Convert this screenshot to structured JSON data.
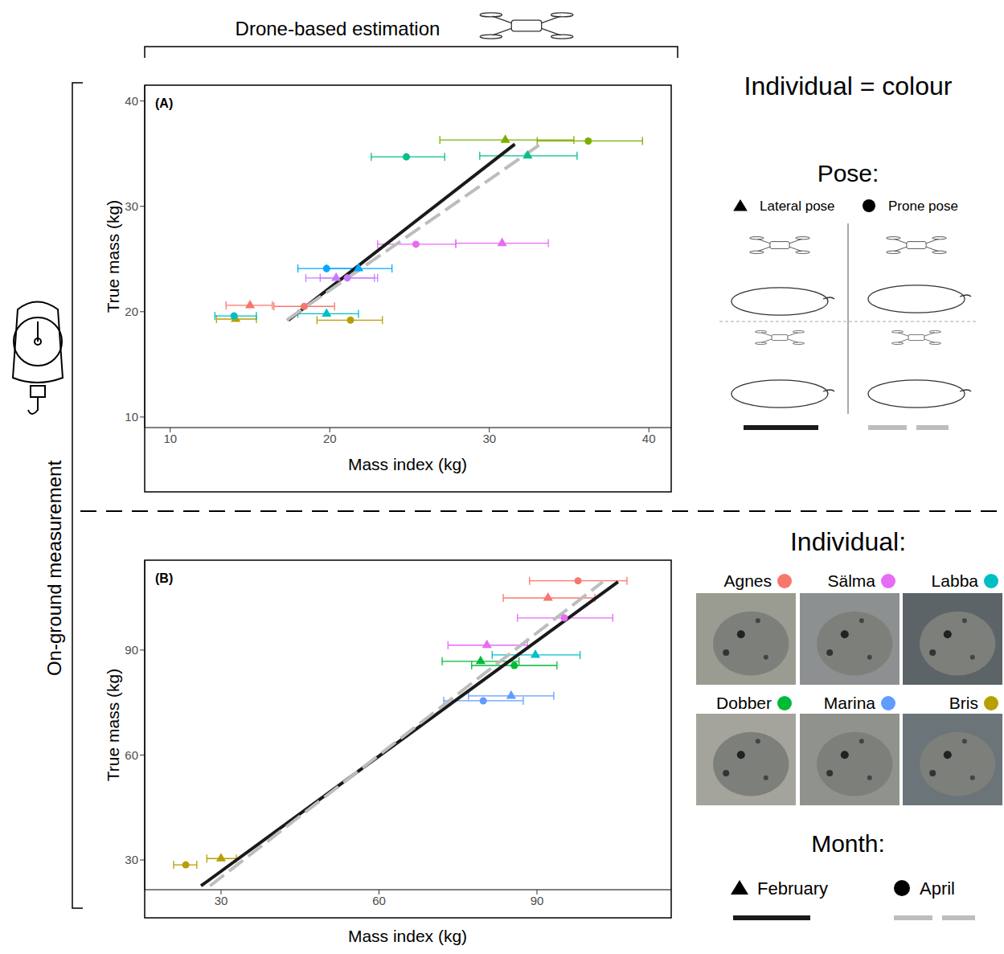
{
  "figure": {
    "top_label": "Drone-based estimation",
    "left_label": "On-ground measurement",
    "colour_note": "Individual = colour",
    "pose_title": "Pose:",
    "individual_title": "Individual:",
    "individuals": [
      {
        "name": "Agnes",
        "color": "#F8766D"
      },
      {
        "name": "Sälma",
        "color": "#E76BF3"
      },
      {
        "name": "Labba",
        "color": "#00BFC4"
      },
      {
        "name": "Dobber",
        "color": "#00BA38"
      },
      {
        "name": "Marina",
        "color": "#619CFF"
      },
      {
        "name": "Bris",
        "color": "#B79F00"
      }
    ],
    "month_title": "Month:"
  },
  "chart_data": [
    {
      "type": "scatter",
      "title": "(A)",
      "x_label": "Mass index (kg)",
      "y_label": "True mass (kg)",
      "xlim": [
        8.4,
        41.4
      ],
      "xticks": [
        10,
        20,
        30,
        40
      ],
      "ylim": [
        9,
        41.5
      ],
      "yticks": [
        10,
        20,
        30,
        40
      ],
      "grid": false,
      "series": [
        {
          "name": "Lateral pose",
          "marker": "triangle",
          "line_style": "solid",
          "color": "#1a1a1a",
          "x": [
            31.0,
            32.4,
            30.8,
            21.8,
            20.4,
            15.0,
            19.8,
            14.1
          ],
          "y": [
            36.3,
            34.8,
            26.5,
            24.1,
            23.2,
            20.6,
            19.8,
            19.3
          ],
          "x_error_low": [
            26.9,
            29.4,
            27.9,
            19.8,
            18.5,
            13.5,
            18.0,
            12.9
          ],
          "x_error_high": [
            35.3,
            35.5,
            33.7,
            23.9,
            22.8,
            16.4,
            21.8,
            15.4
          ],
          "colors": [
            "#7CAE00",
            "#00C08B",
            "#E76BF3",
            "#00A9FF",
            "#C77CFF",
            "#F8766D",
            "#00BFC4",
            "#B79F00"
          ],
          "fit": {
            "x": [
              17.4,
              31.6
            ],
            "y": [
              19.2,
              35.9
            ]
          }
        },
        {
          "name": "Prone pose",
          "marker": "circle",
          "line_style": "dashed",
          "color": "#bdbdbd",
          "x": [
            36.2,
            24.8,
            25.4,
            19.8,
            21.1,
            18.4,
            14.0,
            21.3
          ],
          "y": [
            36.2,
            34.7,
            26.4,
            24.1,
            23.2,
            20.5,
            19.6,
            19.2
          ],
          "x_error_low": [
            33.0,
            22.6,
            23.0,
            18.0,
            19.4,
            16.5,
            12.8,
            19.2
          ],
          "x_error_high": [
            39.6,
            27.2,
            27.9,
            21.8,
            23.0,
            20.3,
            15.4,
            23.3
          ],
          "colors": [
            "#7CAE00",
            "#00C08B",
            "#E76BF3",
            "#00A9FF",
            "#C77CFF",
            "#F8766D",
            "#00BFC4",
            "#B79F00"
          ],
          "fit": {
            "x": [
              17.3,
              33.3
            ],
            "y": [
              19.2,
              36.0
            ]
          }
        }
      ]
    },
    {
      "type": "scatter",
      "title": "(B)",
      "x_label": "Mass index (kg)",
      "y_label": "True mass (kg)",
      "xlim": [
        15.5,
        115.5
      ],
      "xticks": [
        30,
        60,
        90
      ],
      "ylim": [
        21.5,
        115.7
      ],
      "yticks": [
        30,
        60,
        90
      ],
      "grid": false,
      "series": [
        {
          "name": "February",
          "marker": "triangle",
          "line_style": "solid",
          "color": "#1a1a1a",
          "x": [
            92.1,
            80.5,
            89.7,
            79.3,
            85.1,
            30.0
          ],
          "y": [
            104.9,
            91.4,
            88.6,
            86.8,
            76.9,
            30.4
          ],
          "x_error_low": [
            83.6,
            73.1,
            81.5,
            72.0,
            77.0,
            27.3
          ],
          "x_error_high": [
            101.0,
            88.2,
            98.2,
            86.6,
            93.2,
            32.9
          ],
          "colors": [
            "#F8766D",
            "#E76BF3",
            "#00BFC4",
            "#00BA38",
            "#619CFF",
            "#B79F00"
          ],
          "fit": {
            "x": [
              26.2,
              105.4
            ],
            "y": [
              22.6,
              109.5
            ]
          }
        },
        {
          "name": "April",
          "marker": "circle",
          "line_style": "dashed",
          "color": "#bdbdbd",
          "x": [
            97.8,
            95.2,
            85.7,
            79.8,
            23.3
          ],
          "y": [
            109.8,
            99.2,
            85.6,
            75.5,
            28.6
          ],
          "x_error_low": [
            88.6,
            86.3,
            77.6,
            72.3,
            21.0
          ],
          "x_error_high": [
            107.1,
            104.4,
            93.8,
            87.4,
            25.4
          ],
          "colors": [
            "#F8766D",
            "#E76BF3",
            "#00BA38",
            "#619CFF",
            "#B79F00"
          ],
          "fit": {
            "x": [
              27.9,
              102.5
            ],
            "y": [
              22.6,
              109.5
            ]
          }
        }
      ]
    }
  ]
}
